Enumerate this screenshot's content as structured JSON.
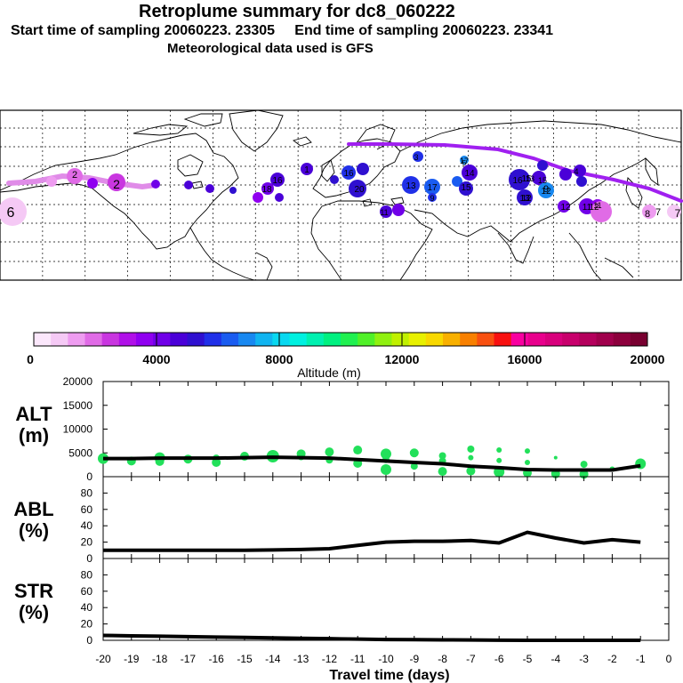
{
  "header": {
    "title": "Retroplume summary for dc8_060222",
    "sampling_line": "Start time of sampling 20060223. 23305     End time of sampling 20060223. 23341",
    "met_line": "Meteorological data used is GFS"
  },
  "colorbar": {
    "tick_labels": [
      "0",
      "4000",
      "8000",
      "12000",
      "16000",
      "20000"
    ],
    "label": "Altitude (m)",
    "colors": [
      "#fbe7fb",
      "#f5c9f5",
      "#ee9cf0",
      "#e06be6",
      "#c936e0",
      "#b010e8",
      "#9000f0",
      "#7000e8",
      "#4a00d8",
      "#2f10d0",
      "#2030e8",
      "#1a5cf0",
      "#1888f0",
      "#10b4f0",
      "#08d8f0",
      "#00f0e0",
      "#00f0b0",
      "#00f080",
      "#20f050",
      "#50f028",
      "#90f010",
      "#c0f000",
      "#e8f000",
      "#f8d800",
      "#f8b000",
      "#f88000",
      "#f85010",
      "#f81010",
      "#f800a0",
      "#e8008c",
      "#d8007c",
      "#c8006c",
      "#b4005c",
      "#a0004c",
      "#8c003c",
      "#780030"
    ]
  },
  "map": {
    "plume_labels": [
      "6",
      "2",
      "2",
      "16",
      "18",
      "1",
      "16",
      "20",
      "11",
      "13",
      "17",
      "15",
      "9",
      "3",
      "14",
      "17",
      "12",
      "4",
      "16",
      "12",
      "5",
      "7",
      "11",
      "15",
      "13",
      "13",
      "9",
      "15",
      "12",
      "12",
      "11",
      "8",
      "7"
    ]
  },
  "chart_data": [
    {
      "type": "line",
      "name": "ALT",
      "title": "ALT\n(m)",
      "ylabel_lines": [
        "ALT",
        "(m)"
      ],
      "x": [
        -20,
        -19,
        -18,
        -17,
        -16,
        -15,
        -14,
        -13,
        -12,
        -11,
        -10,
        -9,
        -8,
        -7,
        -6,
        -5,
        -4,
        -3,
        -2,
        -1
      ],
      "values": [
        3800,
        3800,
        3900,
        3900,
        3900,
        4000,
        4100,
        4000,
        3900,
        3600,
        3300,
        3000,
        2700,
        2200,
        1900,
        1500,
        1400,
        1400,
        1400,
        2300
      ],
      "scatter_x": [
        -20,
        -19,
        -18,
        -18,
        -17,
        -16,
        -16,
        -15,
        -14,
        -14,
        -13,
        -13,
        -12,
        -12,
        -11,
        -11,
        -10,
        -10,
        -10,
        -9,
        -9,
        -8,
        -8,
        -8,
        -7,
        -7,
        -7,
        -6,
        -6,
        -6,
        -5,
        -5,
        -5,
        -4,
        -4,
        -3,
        -3,
        -2,
        -1
      ],
      "scatter_y": [
        3800,
        3300,
        4000,
        3200,
        3700,
        3900,
        3000,
        4300,
        4300,
        4000,
        4800,
        4200,
        5200,
        3500,
        5600,
        2800,
        4800,
        3600,
        1500,
        5000,
        2200,
        4400,
        3300,
        1100,
        5800,
        4000,
        1200,
        5600,
        3400,
        1000,
        5400,
        3000,
        800,
        4000,
        600,
        2600,
        500,
        1600,
        2700
      ],
      "scatter_r": [
        6,
        5,
        6,
        5,
        5,
        4,
        5,
        5,
        7,
        5,
        5,
        4,
        5,
        4,
        5,
        5,
        6,
        4,
        6,
        5,
        4,
        4,
        4,
        5,
        4,
        3,
        5,
        3,
        3,
        6,
        3,
        3,
        5,
        2,
        5,
        4,
        5,
        3,
        6
      ],
      "ylim": [
        0,
        20000
      ],
      "yticks": [
        0,
        5000,
        10000,
        15000,
        20000
      ]
    },
    {
      "type": "line",
      "name": "ABL",
      "ylabel_lines": [
        "ABL",
        "(%)"
      ],
      "x": [
        -20,
        -19,
        -18,
        -17,
        -16,
        -15,
        -14,
        -13,
        -12,
        -11,
        -10,
        -9,
        -8,
        -7,
        -6,
        -5,
        -4,
        -3,
        -2,
        -1
      ],
      "values": [
        10,
        10,
        10,
        10,
        10,
        10,
        10.5,
        11,
        12,
        16,
        20,
        21,
        21,
        22,
        19,
        32,
        25,
        19,
        23,
        20
      ],
      "ylim": [
        0,
        100
      ],
      "yticks": [
        0,
        20,
        40,
        60,
        80
      ]
    },
    {
      "type": "line",
      "name": "STR",
      "ylabel_lines": [
        "STR",
        "(%)"
      ],
      "x": [
        -20,
        -19,
        -18,
        -17,
        -16,
        -15,
        -14,
        -13,
        -12,
        -11,
        -10,
        -9,
        -8,
        -7,
        -6,
        -5,
        -4,
        -3,
        -2,
        -1
      ],
      "values": [
        6,
        5.5,
        5,
        4.5,
        4,
        3.5,
        3,
        2.5,
        2,
        1.5,
        1,
        0.8,
        0.6,
        0.4,
        0.2,
        0,
        0,
        0,
        0,
        0
      ],
      "ylim": [
        0,
        100
      ],
      "yticks": [
        0,
        20,
        40,
        60,
        80
      ]
    }
  ],
  "xaxis": {
    "label": "Travel time (days)",
    "tick_labels": [
      "-20",
      "-19",
      "-18",
      "-17",
      "-16",
      "-15",
      "-14",
      "-13",
      "-12",
      "-11",
      "-10",
      "-9",
      "-8",
      "-7",
      "-6",
      "-5",
      "-4",
      "-3",
      "-2",
      "-1",
      "0"
    ]
  }
}
